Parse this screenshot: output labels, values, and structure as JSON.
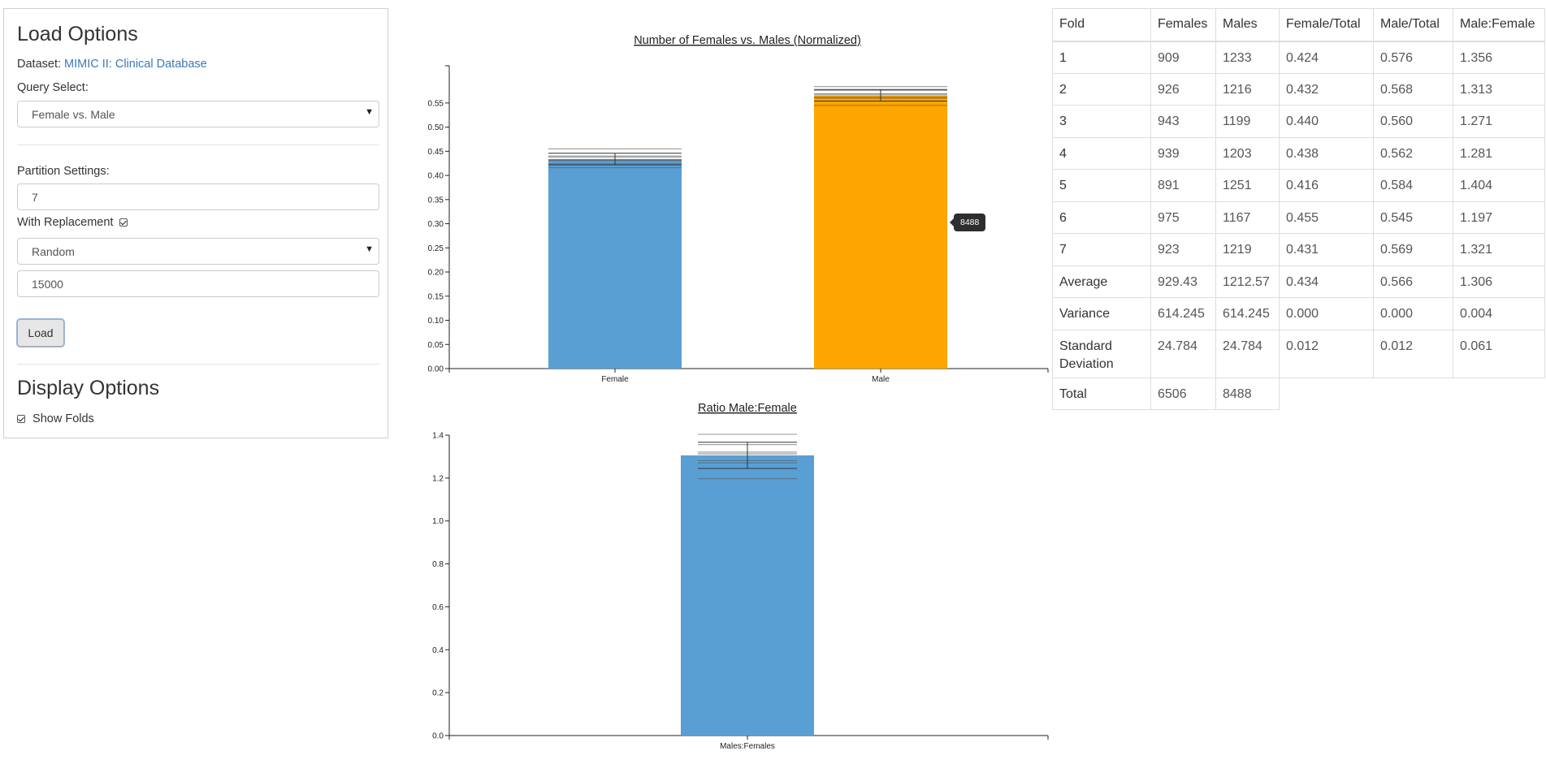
{
  "load_options": {
    "title": "Load Options",
    "dataset_label": "Dataset:",
    "dataset_value": "MIMIC II: Clinical Database",
    "query_label": "Query Select:",
    "query_value": "Female vs. Male",
    "partition_label": "Partition Settings:",
    "partition_count": "7",
    "replacement_label": "With Replacement",
    "replacement_checked": true,
    "sampling_value": "Random",
    "sample_size": "15000",
    "load_button": "Load"
  },
  "display_options": {
    "title": "Display Options",
    "show_folds_label": "Show Folds",
    "show_folds_checked": true
  },
  "tooltip": {
    "text": "8488"
  },
  "colors": {
    "female": "#5a9fd4",
    "male": "#ffa500",
    "ratio": "#5a9fd4"
  },
  "table": {
    "headers": [
      "Fold",
      "Females",
      "Males",
      "Female/Total",
      "Male/Total",
      "Male:Female"
    ],
    "rows": [
      [
        "1",
        "909",
        "1233",
        "0.424",
        "0.576",
        "1.356"
      ],
      [
        "2",
        "926",
        "1216",
        "0.432",
        "0.568",
        "1.313"
      ],
      [
        "3",
        "943",
        "1199",
        "0.440",
        "0.560",
        "1.271"
      ],
      [
        "4",
        "939",
        "1203",
        "0.438",
        "0.562",
        "1.281"
      ],
      [
        "5",
        "891",
        "1251",
        "0.416",
        "0.584",
        "1.404"
      ],
      [
        "6",
        "975",
        "1167",
        "0.455",
        "0.545",
        "1.197"
      ],
      [
        "7",
        "923",
        "1219",
        "0.431",
        "0.569",
        "1.321"
      ],
      [
        "Average",
        "929.43",
        "1212.57",
        "0.434",
        "0.566",
        "1.306"
      ],
      [
        "Variance",
        "614.245",
        "614.245",
        "0.000",
        "0.000",
        "0.004"
      ],
      [
        "Standard Deviation",
        "24.784",
        "24.784",
        "0.012",
        "0.012",
        "0.061"
      ]
    ],
    "total_row": [
      "Total",
      "6506",
      "8488"
    ]
  },
  "chart_data": [
    {
      "type": "bar",
      "title": "Number of Females vs. Males (Normalized)",
      "categories": [
        "Female",
        "Male"
      ],
      "values": [
        0.434,
        0.566
      ],
      "std": [
        0.012,
        0.012
      ],
      "folds": [
        [
          0.424,
          0.432,
          0.44,
          0.438,
          0.416,
          0.455,
          0.431
        ],
        [
          0.576,
          0.568,
          0.56,
          0.562,
          0.584,
          0.545,
          0.569
        ]
      ],
      "ylim": [
        0,
        0.58
      ],
      "yticks": [
        "0.00",
        "0.05",
        "0.10",
        "0.15",
        "0.20",
        "0.25",
        "0.30",
        "0.35",
        "0.40",
        "0.45",
        "0.50",
        "0.55"
      ],
      "xlabel": "",
      "ylabel": "",
      "grid": false
    },
    {
      "type": "bar",
      "title": "Ratio Male:Female",
      "categories": [
        "Males:Females"
      ],
      "values": [
        1.306
      ],
      "std": [
        0.061
      ],
      "folds": [
        [
          1.356,
          1.313,
          1.271,
          1.281,
          1.404,
          1.197,
          1.321
        ]
      ],
      "ylim": [
        0,
        1.4
      ],
      "yticks": [
        "0.0",
        "0.2",
        "0.4",
        "0.6",
        "0.8",
        "1.0",
        "1.2",
        "1.4"
      ],
      "xlabel": "",
      "ylabel": "",
      "grid": false
    }
  ]
}
